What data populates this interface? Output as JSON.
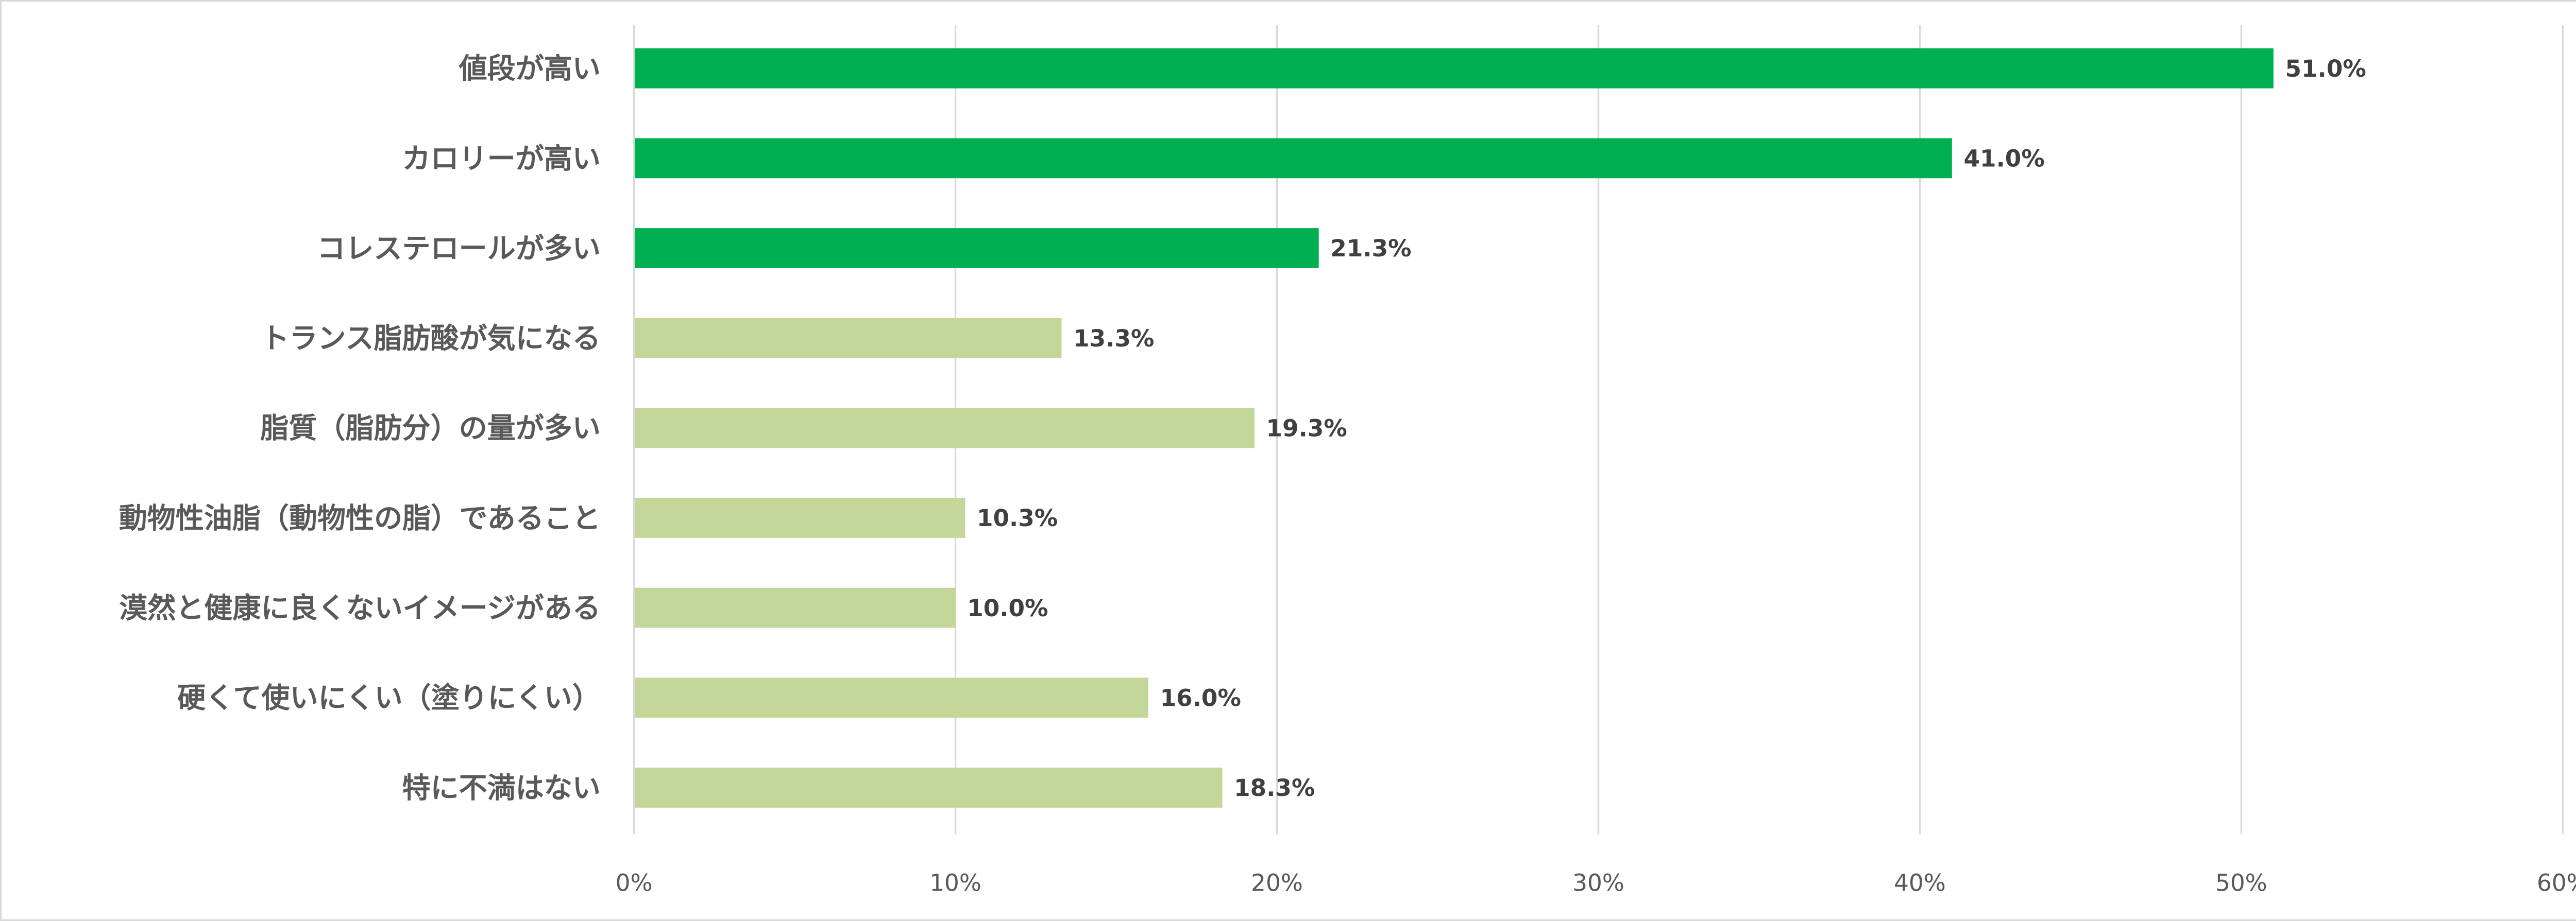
{
  "chart_data": {
    "type": "bar",
    "orientation": "horizontal",
    "categories": [
      "値段が高い",
      "カロリーが高い",
      "コレステロールが多い",
      "トランス脂肪酸が気になる",
      "脂質（脂肪分）の量が多い",
      "動物性油脂（動物性の脂）であること",
      "漠然と健康に良くないイメージがある",
      "硬くて使いにくい（塗りにくい）",
      "特に不満はない"
    ],
    "values": [
      51.0,
      41.0,
      21.3,
      13.3,
      19.3,
      10.3,
      10.0,
      16.0,
      18.3
    ],
    "data_labels": [
      "51.0%",
      "41.0%",
      "21.3%",
      "13.3%",
      "19.3%",
      "10.3%",
      "10.0%",
      "16.0%",
      "18.3%"
    ],
    "highlight": [
      true,
      true,
      true,
      false,
      false,
      false,
      false,
      false,
      false
    ],
    "colors": {
      "highlight": "#00b050",
      "normal": "#c4d79b",
      "grid": "#d9d9d9"
    },
    "xlim": [
      0,
      60
    ],
    "xticks": [
      "0%",
      "10%",
      "20%",
      "30%",
      "40%",
      "50%",
      "60%"
    ],
    "grid": "vertical",
    "title": "",
    "xlabel": "",
    "ylabel": ""
  }
}
